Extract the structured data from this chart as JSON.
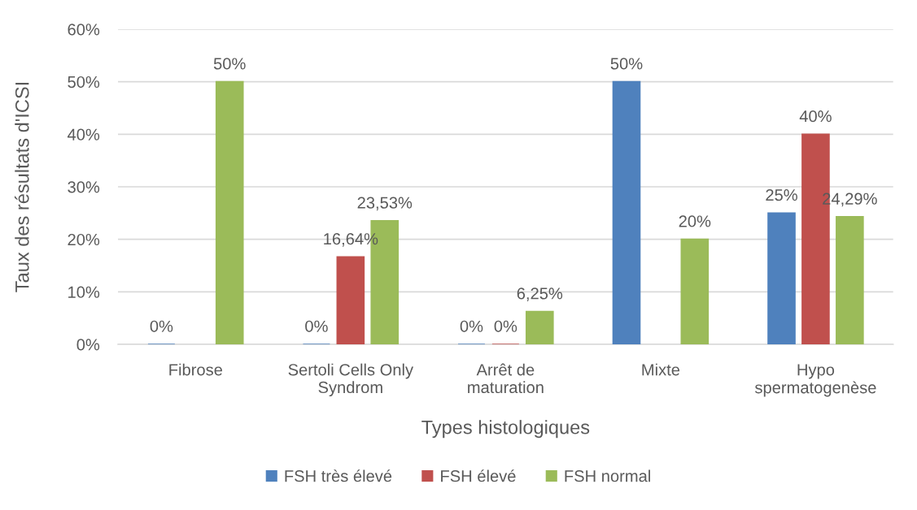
{
  "chart_data": {
    "type": "bar",
    "categories": [
      "Fibrose",
      "Sertoli Cells Only\nSyndrom",
      "Arrêt de\nmaturation",
      "Mixte",
      "Hypo\nspermatogenèse"
    ],
    "series": [
      {
        "name": "FSH très élevé",
        "color": "#4f81bd",
        "values": [
          0,
          0,
          0,
          50,
          25
        ],
        "value_labels": [
          "0%",
          "0%",
          "0%",
          "50%",
          "25%"
        ]
      },
      {
        "name": "FSH élevé",
        "color": "#c0504d",
        "values": [
          null,
          16.64,
          0,
          null,
          40
        ],
        "value_labels": [
          null,
          "16,64%",
          "0%",
          null,
          "40%"
        ]
      },
      {
        "name": "FSH normal",
        "color": "#9bbb59",
        "values": [
          50,
          23.53,
          6.25,
          20,
          24.29
        ],
        "value_labels": [
          "50%",
          "23,53%",
          "6,25%",
          "20%",
          "24,29%"
        ]
      }
    ],
    "xlabel": "Types histologiques",
    "ylabel": "Taux des résultats d'ICSI",
    "ylim": [
      0,
      60
    ],
    "yticks": [
      {
        "value": 0,
        "label": "0%"
      },
      {
        "value": 10,
        "label": "10%"
      },
      {
        "value": 20,
        "label": "20%"
      },
      {
        "value": 30,
        "label": "30%"
      },
      {
        "value": 40,
        "label": "40%"
      },
      {
        "value": 50,
        "label": "50%"
      },
      {
        "value": 60,
        "label": "60%"
      }
    ],
    "grid": "y",
    "legend": "bottom"
  }
}
